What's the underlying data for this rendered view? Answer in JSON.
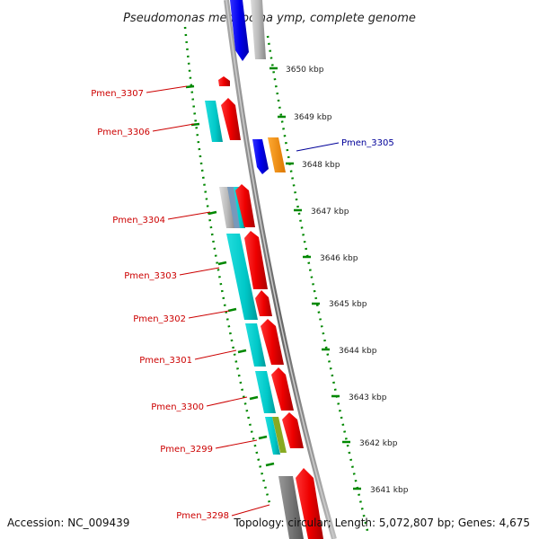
{
  "title": "Pseudomonas mendocina ymp, complete genome",
  "footer": {
    "accession": "Accession: NC_009439",
    "topology": "Topology: circular; Length: 5,072,807 bp; Genes: 4,675"
  },
  "ticks": [
    {
      "label": "3650 kbp"
    },
    {
      "label": "3649 kbp"
    },
    {
      "label": "3648 kbp"
    },
    {
      "label": "3647 kbp"
    },
    {
      "label": "3646 kbp"
    },
    {
      "label": "3645 kbp"
    },
    {
      "label": "3644 kbp"
    },
    {
      "label": "3643 kbp"
    },
    {
      "label": "3642 kbp"
    },
    {
      "label": "3641 kbp"
    }
  ],
  "gene_labels": [
    {
      "name": "Pmen_3307",
      "strand": "forward"
    },
    {
      "name": "Pmen_3306",
      "strand": "forward"
    },
    {
      "name": "Pmen_3305",
      "strand": "reverse"
    },
    {
      "name": "Pmen_3304",
      "strand": "forward"
    },
    {
      "name": "Pmen_3303",
      "strand": "forward"
    },
    {
      "name": "Pmen_3302",
      "strand": "forward"
    },
    {
      "name": "Pmen_3301",
      "strand": "forward"
    },
    {
      "name": "Pmen_3300",
      "strand": "forward"
    },
    {
      "name": "Pmen_3299",
      "strand": "forward"
    },
    {
      "name": "Pmen_3298",
      "strand": "forward"
    }
  ],
  "colors": {
    "forward_label": "#cc0000",
    "reverse_label": "#000099",
    "cds_forward": "#ff0000",
    "cds_reverse": "#0000ee",
    "feature_cyan": "#00cccc",
    "feature_orange": "#ff9900",
    "feature_olive": "#88aa22",
    "feature_grey": "#999999",
    "backbone": "#777777",
    "tick_green": "#008800"
  }
}
